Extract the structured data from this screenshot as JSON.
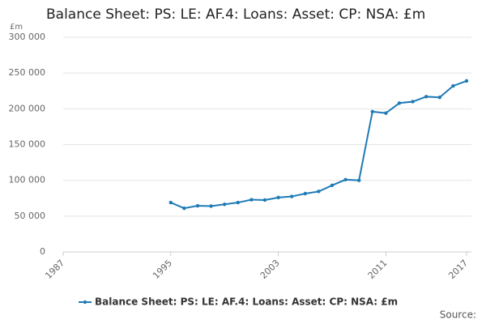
{
  "chart_data": {
    "type": "line",
    "title": "Balance Sheet: PS: LE: AF.4: Loans: Asset: CP: NSA: £m",
    "y_label": "£m",
    "source": "Source:",
    "x": [
      1995,
      1996,
      1997,
      1998,
      1999,
      2000,
      2001,
      2002,
      2003,
      2004,
      2005,
      2006,
      2007,
      2008,
      2009,
      2010,
      2011,
      2012,
      2013,
      2014,
      2015,
      2016,
      2017
    ],
    "series": [
      {
        "name": "Balance Sheet: PS: LE: AF.4: Loans: Asset: CP: NSA: £m",
        "color": "#1f7bb6",
        "values": [
          69000,
          61000,
          64500,
          64000,
          66500,
          69000,
          73000,
          72500,
          76000,
          77500,
          81500,
          84500,
          93000,
          101000,
          100000,
          196000,
          194000,
          208000,
          210000,
          217000,
          216000,
          232000,
          239000
        ]
      }
    ],
    "xlim": [
      1987,
      2017
    ],
    "xticks": [
      1987,
      1995,
      2003,
      2011,
      2017
    ],
    "ylim": [
      0,
      300000
    ],
    "yticks": [
      0,
      {
        "value": 50000,
        "label": "50 000"
      },
      {
        "value": 100000,
        "label": "100 000"
      },
      {
        "value": 150000,
        "label": "150 000"
      },
      {
        "value": 200000,
        "label": "200 000"
      },
      {
        "value": 250000,
        "label": "250 000"
      },
      {
        "value": 300000,
        "label": "300 000"
      }
    ],
    "grid": true
  }
}
